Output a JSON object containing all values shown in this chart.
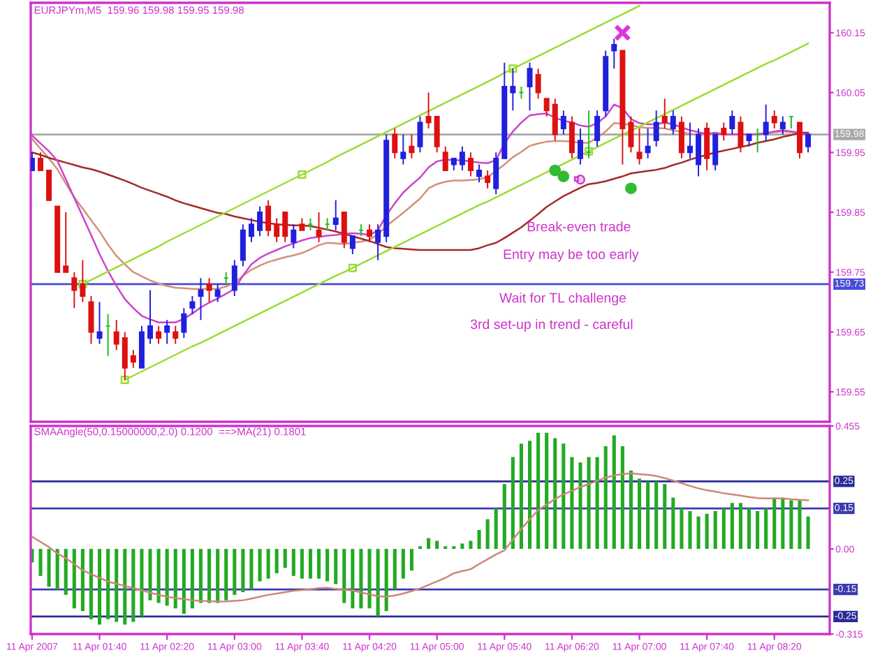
{
  "chart_data": [
    {
      "type": "candlestick",
      "title": "EURJPYm,M5  159.96 159.98 159.95 159.98",
      "categories": [
        null,
        null,
        null,
        null,
        null,
        null,
        null,
        null,
        null,
        null,
        null,
        null,
        null,
        null,
        null,
        null,
        null,
        null,
        null,
        null,
        null,
        null,
        null,
        null,
        null,
        null,
        null,
        null,
        null,
        null,
        null,
        null,
        null,
        null,
        null,
        null,
        null,
        null,
        null,
        null,
        null,
        null,
        null,
        null,
        null,
        null,
        null,
        null,
        null,
        null,
        null,
        null,
        null,
        null,
        null,
        null,
        null,
        null,
        null,
        null,
        null,
        null,
        null,
        null,
        null,
        null,
        null,
        null,
        null,
        null,
        null,
        null,
        null,
        null,
        null,
        null,
        null,
        null,
        null,
        null,
        null,
        null,
        null,
        null,
        null,
        null,
        null,
        null,
        null,
        null,
        null,
        null,
        null
      ],
      "ohlc": [
        [
          159.92,
          159.95,
          159.92,
          159.94
        ],
        [
          159.94,
          159.95,
          159.92,
          159.92
        ],
        [
          159.92,
          159.92,
          159.87,
          159.87
        ],
        [
          159.86,
          159.86,
          159.75,
          159.75
        ],
        [
          159.76,
          159.85,
          159.75,
          159.75
        ],
        [
          159.74,
          159.75,
          159.69,
          159.72
        ],
        [
          159.73,
          159.77,
          159.7,
          159.71
        ],
        [
          159.7,
          159.71,
          159.63,
          159.65
        ],
        [
          159.64,
          159.7,
          159.63,
          159.65
        ],
        [
          159.66,
          159.68,
          159.61,
          159.66
        ],
        [
          159.65,
          159.67,
          159.62,
          159.63
        ],
        [
          159.64,
          159.65,
          159.57,
          159.59
        ],
        [
          159.61,
          159.62,
          159.59,
          159.6
        ],
        [
          159.59,
          159.66,
          159.59,
          159.65
        ],
        [
          159.64,
          159.72,
          159.63,
          159.66
        ],
        [
          159.65,
          159.66,
          159.63,
          159.64
        ],
        [
          159.65,
          159.67,
          159.63,
          159.66
        ],
        [
          159.65,
          159.66,
          159.63,
          159.64
        ],
        [
          159.65,
          159.69,
          159.64,
          159.68
        ],
        [
          159.69,
          159.71,
          159.68,
          159.7
        ],
        [
          159.71,
          159.74,
          159.67,
          159.72
        ],
        [
          159.73,
          159.74,
          159.7,
          159.72
        ],
        [
          159.71,
          159.73,
          159.7,
          159.72
        ],
        [
          159.74,
          159.75,
          159.73,
          159.74
        ],
        [
          159.72,
          159.77,
          159.71,
          159.76
        ],
        [
          159.77,
          159.83,
          159.76,
          159.82
        ],
        [
          159.81,
          159.84,
          159.8,
          159.83
        ],
        [
          159.82,
          159.86,
          159.81,
          159.85
        ],
        [
          159.86,
          159.87,
          159.81,
          159.82
        ],
        [
          159.83,
          159.84,
          159.8,
          159.81
        ],
        [
          159.85,
          159.85,
          159.8,
          159.81
        ],
        [
          159.8,
          159.83,
          159.79,
          159.82
        ],
        [
          159.83,
          159.84,
          159.82,
          159.82
        ],
        [
          159.83,
          159.84,
          159.82,
          159.83
        ],
        [
          159.82,
          159.85,
          159.8,
          159.81
        ],
        [
          159.83,
          159.84,
          159.82,
          159.83
        ],
        [
          159.83,
          159.87,
          159.82,
          159.84
        ],
        [
          159.85,
          159.85,
          159.79,
          159.8
        ],
        [
          159.79,
          159.81,
          159.78,
          159.81
        ],
        [
          159.82,
          159.83,
          159.81,
          159.82
        ],
        [
          159.82,
          159.83,
          159.8,
          159.81
        ],
        [
          159.8,
          159.83,
          159.77,
          159.82
        ],
        [
          159.81,
          159.98,
          159.8,
          159.97
        ],
        [
          159.98,
          159.99,
          159.94,
          159.95
        ],
        [
          159.94,
          159.98,
          159.93,
          159.95
        ],
        [
          159.96,
          159.98,
          159.94,
          159.95
        ],
        [
          159.96,
          160.01,
          159.95,
          160.0
        ],
        [
          160.01,
          160.05,
          159.99,
          160.0
        ],
        [
          160.01,
          160.01,
          159.95,
          159.96
        ],
        [
          159.95,
          159.96,
          159.92,
          159.92
        ],
        [
          159.93,
          159.94,
          159.92,
          159.94
        ],
        [
          159.93,
          159.96,
          159.92,
          159.95
        ],
        [
          159.94,
          159.95,
          159.91,
          159.92
        ],
        [
          159.91,
          159.93,
          159.9,
          159.92
        ],
        [
          159.91,
          159.92,
          159.89,
          159.9
        ],
        [
          159.89,
          159.95,
          159.88,
          159.94
        ],
        [
          159.94,
          160.1,
          159.94,
          160.06
        ],
        [
          160.05,
          160.09,
          160.02,
          160.06
        ],
        [
          160.05,
          160.06,
          160.04,
          160.05
        ],
        [
          160.06,
          160.1,
          160.02,
          160.09
        ],
        [
          160.08,
          160.09,
          160.04,
          160.05
        ],
        [
          160.04,
          160.04,
          160.01,
          160.02
        ],
        [
          160.03,
          160.04,
          159.97,
          159.98
        ],
        [
          159.99,
          160.02,
          159.98,
          160.01
        ],
        [
          160.0,
          160.01,
          159.94,
          159.95
        ],
        [
          159.94,
          159.99,
          159.93,
          159.97
        ],
        [
          159.95,
          160.02,
          159.94,
          159.95
        ],
        [
          159.97,
          160.02,
          159.96,
          160.01
        ],
        [
          160.02,
          160.12,
          160.01,
          160.11
        ],
        [
          160.12,
          160.14,
          160.09,
          160.13
        ],
        [
          160.12,
          160.12,
          159.93,
          159.99
        ],
        [
          160.0,
          160.01,
          159.95,
          159.96
        ],
        [
          159.95,
          159.99,
          159.93,
          159.94
        ],
        [
          159.95,
          159.99,
          159.94,
          159.96
        ],
        [
          159.97,
          160.02,
          159.96,
          160.0
        ],
        [
          160.01,
          160.04,
          159.99,
          160.0
        ],
        [
          159.99,
          160.02,
          159.98,
          160.01
        ],
        [
          160.0,
          160.01,
          159.94,
          159.95
        ],
        [
          159.95,
          160.0,
          159.94,
          159.96
        ],
        [
          159.93,
          159.99,
          159.91,
          159.98
        ],
        [
          159.99,
          160.0,
          159.92,
          159.94
        ],
        [
          159.93,
          159.98,
          159.92,
          159.98
        ],
        [
          159.99,
          160.0,
          159.97,
          159.98
        ],
        [
          159.99,
          160.02,
          159.98,
          160.01
        ],
        [
          160.0,
          160.01,
          159.95,
          159.96
        ],
        [
          159.97,
          159.98,
          159.96,
          159.98
        ],
        [
          159.98,
          159.99,
          159.95,
          159.98
        ],
        [
          159.98,
          160.03,
          159.97,
          160.0
        ],
        [
          160.01,
          160.02,
          159.99,
          160.0
        ],
        [
          159.99,
          160.01,
          159.98,
          160.0
        ],
        [
          160.01,
          160.01,
          159.99,
          160.01
        ],
        [
          160.0,
          160.0,
          159.94,
          159.95
        ],
        [
          159.96,
          159.98,
          159.95,
          159.98
        ]
      ],
      "colors": [
        "#2020dd",
        "#dd1111",
        "#dd1111",
        "#dd1111",
        "#dd1111",
        "#dd1111",
        "#dd1111",
        "#dd1111",
        "#2020dd",
        "#22bb22",
        "#dd1111",
        "#dd1111",
        "#dd1111",
        "#2020dd",
        "#2020dd",
        "#dd1111",
        "#2020dd",
        "#dd1111",
        "#2020dd",
        "#2020dd",
        "#2020dd",
        "#dd1111",
        "#2020dd",
        "#22bb22",
        "#2020dd",
        "#2020dd",
        "#2020dd",
        "#2020dd",
        "#dd1111",
        "#dd1111",
        "#dd1111",
        "#2020dd",
        "#dd1111",
        "#22bb22",
        "#dd1111",
        "#22bb22",
        "#2020dd",
        "#dd1111",
        "#2020dd",
        "#22bb22",
        "#dd1111",
        "#2020dd",
        "#2020dd",
        "#dd1111",
        "#2020dd",
        "#dd1111",
        "#2020dd",
        "#dd1111",
        "#dd1111",
        "#dd1111",
        "#2020dd",
        "#2020dd",
        "#dd1111",
        "#2020dd",
        "#dd1111",
        "#2020dd",
        "#2020dd",
        "#2020dd",
        "#22bb22",
        "#2020dd",
        "#dd1111",
        "#dd1111",
        "#dd1111",
        "#2020dd",
        "#dd1111",
        "#2020dd",
        "#22bb22",
        "#2020dd",
        "#2020dd",
        "#2020dd",
        "#dd1111",
        "#dd1111",
        "#dd1111",
        "#2020dd",
        "#2020dd",
        "#dd1111",
        "#2020dd",
        "#dd1111",
        "#2020dd",
        "#2020dd",
        "#dd1111",
        "#2020dd",
        "#dd1111",
        "#2020dd",
        "#dd1111",
        "#2020dd",
        "#22bb22",
        "#2020dd",
        "#dd1111",
        "#2020dd",
        "#22bb22",
        "#dd1111",
        "#2020dd"
      ],
      "series": [
        {
          "type": "line",
          "color": "#d4907a",
          "values": [
            159.973,
            159.956,
            159.94,
            159.922,
            159.898,
            159.875,
            159.856,
            159.837,
            159.818,
            159.796,
            159.777,
            159.763,
            159.75,
            159.743,
            159.736,
            159.731,
            159.727,
            159.724,
            159.723,
            159.722,
            159.722,
            159.722,
            159.722,
            159.726,
            159.732,
            159.744,
            159.754,
            159.761,
            159.767,
            159.771,
            159.775,
            159.778,
            159.782,
            159.788,
            159.795,
            159.799,
            159.798,
            159.797,
            159.799,
            159.801,
            159.804,
            159.813,
            159.827,
            159.838,
            159.849,
            159.861,
            159.873,
            159.89,
            159.897,
            159.901,
            159.903,
            159.903,
            159.904,
            159.905,
            159.909,
            159.919,
            159.93,
            159.942,
            159.951,
            159.961,
            159.965,
            159.968,
            159.969,
            159.969,
            159.968,
            159.966,
            159.966,
            159.975,
            159.985,
            159.999,
            159.998,
            159.996,
            159.992,
            159.991,
            159.991,
            159.99,
            159.987,
            159.984,
            159.981,
            159.98,
            159.98,
            159.98,
            159.98,
            159.98,
            159.98,
            159.98,
            159.981,
            159.982,
            159.984,
            159.985,
            159.984,
            159.983,
            159.98
          ]
        },
        {
          "type": "line",
          "color": "#a52a2a",
          "values": [
            159.95,
            159.946,
            159.941,
            159.937,
            159.933,
            159.929,
            159.925,
            159.922,
            159.918,
            159.913,
            159.908,
            159.903,
            159.897,
            159.891,
            159.886,
            159.881,
            159.876,
            159.87,
            159.865,
            159.861,
            159.857,
            159.853,
            159.849,
            159.847,
            159.843,
            159.84,
            159.837,
            159.834,
            159.832,
            159.83,
            159.829,
            159.828,
            159.828,
            159.827,
            159.824,
            159.821,
            159.818,
            159.814,
            159.81,
            159.806,
            159.802,
            159.797,
            159.792,
            159.79,
            159.789,
            159.788,
            159.787,
            159.787,
            159.787,
            159.787,
            159.787,
            159.787,
            159.787,
            159.79,
            159.795,
            159.799,
            159.807,
            159.816,
            159.825,
            159.836,
            159.847,
            159.859,
            159.868,
            159.877,
            159.884,
            159.891,
            159.897,
            159.899,
            159.902,
            159.906,
            159.91,
            159.915,
            159.917,
            159.919,
            159.921,
            159.924,
            159.929,
            159.933,
            159.938,
            159.942,
            159.946,
            159.95,
            159.953,
            159.956,
            159.959,
            159.962,
            159.966,
            159.969,
            159.972,
            159.976,
            159.979,
            159.983,
            159.983
          ]
        },
        {
          "type": "line",
          "color": "#cc44cc",
          "values": [
            159.978,
            159.965,
            159.952,
            159.936,
            159.905,
            159.874,
            159.843,
            159.812,
            159.78,
            159.752,
            159.727,
            159.705,
            159.69,
            159.677,
            159.671,
            159.666,
            159.666,
            159.666,
            159.672,
            159.681,
            159.691,
            159.699,
            159.706,
            159.714,
            159.722,
            159.744,
            159.763,
            159.774,
            159.781,
            159.787,
            159.793,
            159.798,
            159.803,
            159.807,
            159.809,
            159.811,
            159.812,
            159.814,
            159.815,
            159.814,
            159.812,
            159.82,
            159.845,
            159.865,
            159.883,
            159.896,
            159.908,
            159.925,
            159.935,
            159.938,
            159.937,
            159.937,
            159.935,
            159.933,
            159.932,
            159.937,
            159.965,
            159.985,
            160.0,
            160.012,
            160.014,
            160.015,
            160.008,
            160.003,
            160.0,
            159.995,
            159.993,
            159.999,
            160.01,
            160.03,
            160.024,
            160.006,
            159.999,
            159.997,
            159.997,
            160.0,
            159.997,
            159.992,
            159.987,
            159.984,
            159.981,
            159.983,
            159.98,
            159.98,
            159.98,
            159.98,
            159.98,
            159.982,
            159.985,
            159.987,
            159.985,
            159.983,
            159.978
          ]
        },
        {
          "type": "line",
          "color": "#99dd33",
          "values": [
            null,
            null,
            null,
            null,
            null,
            null,
            159.73,
            159.737,
            159.744,
            159.751,
            159.758,
            159.765,
            159.772,
            159.779,
            159.786,
            159.793,
            159.801,
            159.808,
            159.815,
            159.822,
            159.829,
            159.836,
            159.843,
            159.85,
            159.857,
            159.864,
            159.871,
            159.878,
            159.885,
            159.892,
            159.899,
            159.906,
            159.913,
            159.92,
            159.927,
            159.934,
            159.942,
            159.949,
            159.956,
            159.963,
            159.97,
            159.977,
            159.984,
            159.991,
            159.998,
            160.005,
            160.012,
            160.019,
            160.026,
            160.033,
            160.04,
            160.047,
            160.054,
            160.061,
            160.068,
            160.075,
            160.083,
            160.09,
            160.097,
            160.104,
            160.111,
            160.118,
            160.125,
            160.132,
            160.139,
            160.146,
            160.153,
            160.16,
            160.167,
            160.174,
            160.181,
            160.188,
            160.195,
            null,
            null,
            null,
            null,
            null,
            null,
            null,
            null,
            null,
            null,
            null,
            null,
            null,
            null,
            null,
            null,
            null,
            null,
            null,
            null
          ]
        },
        {
          "type": "line",
          "color": "#99dd33",
          "values": [
            null,
            null,
            null,
            null,
            null,
            null,
            null,
            null,
            null,
            null,
            null,
            159.57,
            159.577,
            159.584,
            159.591,
            159.598,
            159.605,
            159.612,
            159.619,
            159.626,
            159.632,
            159.639,
            159.646,
            159.653,
            159.66,
            159.667,
            159.674,
            159.681,
            159.688,
            159.695,
            159.702,
            159.709,
            159.716,
            159.723,
            159.73,
            159.737,
            159.744,
            159.75,
            159.757,
            159.764,
            159.771,
            159.778,
            159.785,
            159.792,
            159.799,
            159.806,
            159.813,
            159.82,
            159.827,
            159.834,
            159.841,
            159.848,
            159.855,
            159.862,
            159.868,
            159.875,
            159.882,
            159.889,
            159.896,
            159.903,
            159.91,
            159.917,
            159.924,
            159.931,
            159.938,
            159.945,
            159.952,
            159.959,
            159.966,
            159.973,
            159.98,
            159.986,
            159.993,
            160.0,
            160.007,
            160.014,
            160.021,
            160.028,
            160.035,
            160.042,
            160.049,
            160.056,
            160.063,
            160.07,
            160.077,
            160.084,
            160.091,
            160.098,
            160.104,
            160.111,
            160.118,
            160.125,
            160.132
          ]
        },
        {
          "type": "scatter",
          "marker": "square",
          "color": "#99dd33",
          "values": [
            null,
            null,
            null,
            null,
            null,
            null,
            159.73,
            null,
            null,
            null,
            null,
            159.57,
            null,
            null,
            null,
            null,
            null,
            null,
            null,
            null,
            null,
            null,
            null,
            null,
            null,
            null,
            null,
            null,
            null,
            null,
            null,
            null,
            159.913,
            null,
            null,
            null,
            null,
            null,
            159.757,
            null,
            null,
            null,
            null,
            null,
            null,
            null,
            null,
            null,
            null,
            null,
            null,
            null,
            null,
            null,
            null,
            null,
            null,
            160.09,
            null,
            null,
            null,
            null,
            null,
            null,
            null,
            null,
            159.952,
            null,
            null,
            null,
            null,
            null,
            null,
            null,
            null,
            null,
            null,
            null,
            null,
            null,
            null,
            null,
            null,
            null,
            null,
            null,
            null,
            null,
            null,
            null,
            null,
            null,
            null
          ]
        },
        {
          "type": "scatter",
          "marker": "circle",
          "color": "#33bb33",
          "values": [
            null,
            null,
            null,
            null,
            null,
            null,
            null,
            null,
            null,
            null,
            null,
            null,
            null,
            null,
            null,
            null,
            null,
            null,
            null,
            null,
            null,
            null,
            null,
            null,
            null,
            null,
            null,
            null,
            null,
            null,
            null,
            null,
            null,
            null,
            null,
            null,
            null,
            null,
            null,
            null,
            null,
            null,
            null,
            null,
            null,
            null,
            null,
            null,
            null,
            null,
            null,
            null,
            null,
            null,
            null,
            null,
            null,
            null,
            null,
            null,
            null,
            null,
            159.92,
            159.91,
            null,
            null,
            null,
            null,
            null,
            null,
            null,
            159.89,
            null,
            null,
            null,
            null,
            null,
            null,
            null,
            null,
            null,
            null,
            null,
            null,
            null,
            null,
            null,
            null,
            null,
            null,
            null,
            null,
            null
          ]
        },
        {
          "type": "scatter",
          "marker": "cross",
          "color": "#dd33dd",
          "values": [
            null,
            null,
            null,
            null,
            null,
            null,
            null,
            null,
            null,
            null,
            null,
            null,
            null,
            null,
            null,
            null,
            null,
            null,
            null,
            null,
            null,
            null,
            null,
            null,
            null,
            null,
            null,
            null,
            null,
            null,
            null,
            null,
            null,
            null,
            null,
            null,
            null,
            null,
            null,
            null,
            null,
            null,
            null,
            null,
            null,
            null,
            null,
            null,
            null,
            null,
            null,
            null,
            null,
            null,
            null,
            null,
            null,
            null,
            null,
            null,
            null,
            null,
            null,
            null,
            null,
            null,
            null,
            null,
            null,
            null,
            160.15,
            null,
            null,
            null,
            null,
            null,
            null,
            null,
            null,
            null,
            null,
            null,
            null,
            null,
            null,
            null,
            null,
            null,
            null,
            null,
            null,
            null,
            null
          ]
        }
      ],
      "ylim": [
        159.5,
        160.2
      ],
      "yticks": [
        160.15,
        160.05,
        159.95,
        159.85,
        159.75,
        159.65,
        159.55
      ],
      "ref_lines": [
        {
          "axis": "y",
          "value": 159.98,
          "label": "159.98",
          "color": "#a8a8a8"
        },
        {
          "axis": "y",
          "value": 159.73,
          "label": "159.73",
          "color": "#4a4ad8"
        }
      ],
      "annotations": [
        "Break-even trade",
        "Entry may be too early",
        "Wait for TL challenge",
        "3rd set-up in trend - careful"
      ]
    },
    {
      "type": "bar",
      "title": "SMAAngle(50,0.15000000,2.0) 0.1200  ==>MA(21) 0.1801",
      "categories": [
        "11 Apr 2007",
        null,
        null,
        null,
        null,
        null,
        null,
        null,
        "11 Apr 01:40",
        null,
        null,
        null,
        null,
        null,
        null,
        null,
        "11 Apr 02:20",
        null,
        null,
        null,
        null,
        null,
        null,
        null,
        "11 Apr 03:00",
        null,
        null,
        null,
        null,
        null,
        null,
        null,
        "11 Apr 03:40",
        null,
        null,
        null,
        null,
        null,
        null,
        null,
        "11 Apr 04:20",
        null,
        null,
        null,
        null,
        null,
        null,
        null,
        "11 Apr 05:00",
        null,
        null,
        null,
        null,
        null,
        null,
        null,
        "11 Apr 05:40",
        null,
        null,
        null,
        null,
        null,
        null,
        null,
        "11 Apr 06:20",
        null,
        null,
        null,
        null,
        null,
        null,
        null,
        "11 Apr 07:00",
        null,
        null,
        null,
        null,
        null,
        null,
        null,
        "11 Apr 07:40",
        null,
        null,
        null,
        null,
        null,
        null,
        null,
        "11 Apr 08:20",
        null,
        null,
        null,
        null
      ],
      "series": [
        {
          "type": "bar",
          "color": "#22aa22",
          "values": [
            -0.05,
            -0.1,
            -0.14,
            -0.15,
            -0.17,
            -0.22,
            -0.23,
            -0.26,
            -0.28,
            -0.26,
            -0.27,
            -0.28,
            -0.27,
            -0.25,
            -0.19,
            -0.2,
            -0.21,
            -0.22,
            -0.24,
            -0.22,
            -0.2,
            -0.2,
            -0.2,
            -0.19,
            -0.17,
            -0.16,
            -0.15,
            -0.12,
            -0.11,
            -0.09,
            -0.07,
            -0.1,
            -0.11,
            -0.11,
            -0.11,
            -0.12,
            -0.13,
            -0.2,
            -0.22,
            -0.22,
            -0.22,
            -0.25,
            -0.23,
            -0.15,
            -0.11,
            -0.08,
            0.01,
            0.04,
            0.03,
            0.01,
            0.01,
            0.02,
            0.03,
            0.07,
            0.11,
            0.15,
            0.24,
            0.34,
            0.39,
            0.4,
            0.43,
            0.43,
            0.41,
            0.39,
            0.34,
            0.32,
            0.34,
            0.34,
            0.38,
            0.42,
            0.38,
            0.29,
            0.26,
            0.25,
            0.25,
            0.24,
            0.19,
            0.15,
            0.14,
            0.12,
            0.13,
            0.14,
            0.15,
            0.17,
            0.17,
            0.15,
            0.14,
            0.15,
            0.19,
            0.19,
            0.18,
            0.18,
            0.12
          ]
        },
        {
          "type": "line",
          "color": "#cc8877",
          "values": [
            0.045,
            0.026,
            0.007,
            -0.017,
            -0.034,
            -0.056,
            -0.079,
            -0.093,
            -0.107,
            -0.121,
            -0.129,
            -0.137,
            -0.145,
            -0.153,
            -0.162,
            -0.17,
            -0.177,
            -0.182,
            -0.186,
            -0.19,
            -0.192,
            -0.193,
            -0.195,
            -0.194,
            -0.192,
            -0.19,
            -0.184,
            -0.177,
            -0.17,
            -0.165,
            -0.16,
            -0.155,
            -0.152,
            -0.149,
            -0.145,
            -0.144,
            -0.148,
            -0.151,
            -0.154,
            -0.161,
            -0.168,
            -0.175,
            -0.177,
            -0.172,
            -0.165,
            -0.156,
            -0.146,
            -0.133,
            -0.12,
            -0.107,
            -0.09,
            -0.082,
            -0.075,
            -0.056,
            -0.038,
            -0.02,
            -0.005,
            0.034,
            0.074,
            0.11,
            0.143,
            0.164,
            0.185,
            0.202,
            0.215,
            0.229,
            0.24,
            0.252,
            0.264,
            0.272,
            0.277,
            0.28,
            0.277,
            0.274,
            0.27,
            0.262,
            0.253,
            0.243,
            0.233,
            0.224,
            0.217,
            0.212,
            0.206,
            0.202,
            0.197,
            0.192,
            0.188,
            0.187,
            0.187,
            0.187,
            0.184,
            0.182,
            0.18
          ]
        }
      ],
      "ylim": [
        -0.315,
        0.455
      ],
      "yticks": [
        0.455,
        {
          "value": 0,
          "label": "0.00"
        },
        -0.315
      ],
      "ref_lines": [
        {
          "axis": "y",
          "value": 0.25,
          "label": "0.25",
          "color": "#2a2a9a"
        },
        {
          "axis": "y",
          "value": 0.15,
          "label": "0.15",
          "color": "#3a3ab0"
        },
        {
          "axis": "y",
          "value": -0.15,
          "label": "-0.15",
          "color": "#3a3ab0"
        },
        {
          "axis": "y",
          "value": -0.25,
          "label": "-0.25",
          "color": "#2a2a9a"
        }
      ]
    }
  ]
}
